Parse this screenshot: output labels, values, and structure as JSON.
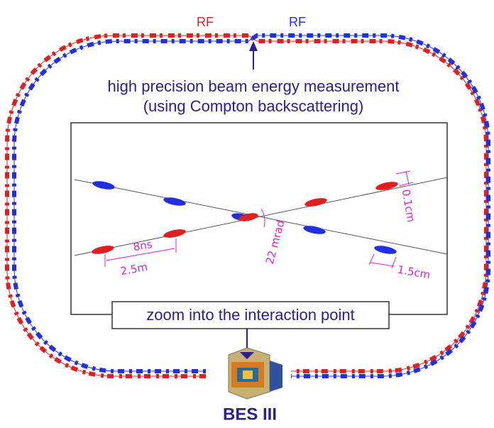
{
  "ring": {
    "rf_left": "RF",
    "rf_right": "RF"
  },
  "measurement": {
    "line1": "high precision beam energy measurement",
    "line2": "(using Compton backscattering)"
  },
  "zoom": {
    "bunch_spacing_time": "8ns",
    "bunch_spacing_length": "2.5m",
    "crossing_angle": "22 mrad",
    "bunch_height": "0.1cm",
    "bunch_length": "1.5cm",
    "caption": "zoom into the interaction point"
  },
  "detector": {
    "label": "BES III"
  }
}
